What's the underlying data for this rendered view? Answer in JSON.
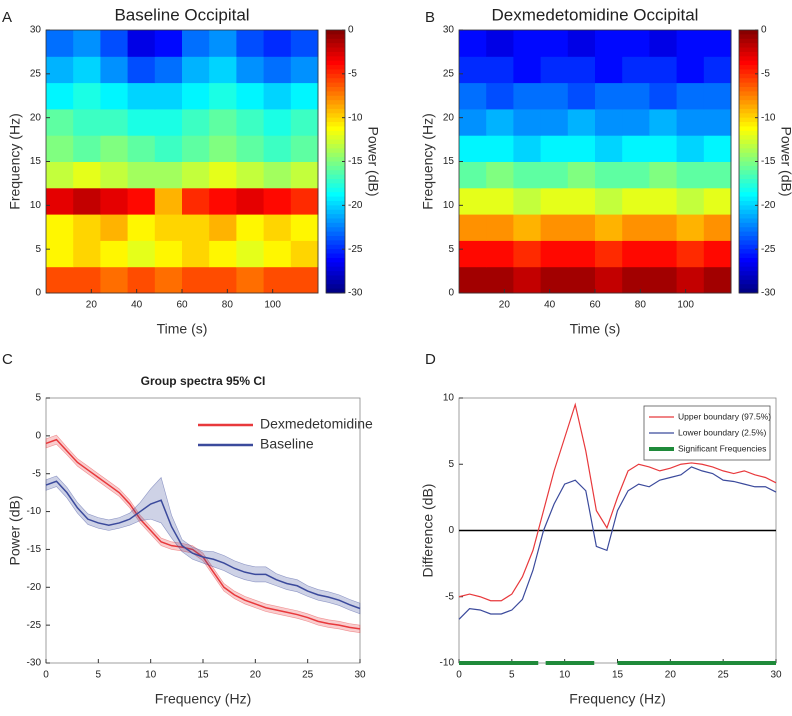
{
  "chart_data": [
    {
      "panel": "A",
      "type": "heatmap",
      "title": "Baseline Occipital",
      "xlabel": "Time (s)",
      "ylabel": "Frequency (Hz)",
      "x_edges": [
        0,
        12,
        24,
        36,
        48,
        60,
        72,
        84,
        96,
        108,
        120
      ],
      "y_edges": [
        0,
        3,
        6,
        9,
        12,
        15,
        18,
        21,
        24,
        27,
        30
      ],
      "z": [
        [
          -6,
          -6,
          -7,
          -6,
          -7,
          -6,
          -6,
          -7,
          -6,
          -6
        ],
        [
          -11,
          -10,
          -11,
          -12,
          -11,
          -10,
          -11,
          -12,
          -11,
          -10
        ],
        [
          -11,
          -10,
          -9,
          -11,
          -10,
          -10,
          -9,
          -11,
          -10,
          -11
        ],
        [
          -3,
          -2,
          -3,
          -4,
          -9,
          -5,
          -4,
          -3,
          -4,
          -5
        ],
        [
          -13,
          -12,
          -13,
          -14,
          -14,
          -13,
          -12,
          -13,
          -14,
          -13
        ],
        [
          -15,
          -16,
          -15,
          -16,
          -17,
          -16,
          -15,
          -16,
          -17,
          -16
        ],
        [
          -16,
          -17,
          -17,
          -18,
          -18,
          -17,
          -16,
          -17,
          -18,
          -17
        ],
        [
          -19,
          -18,
          -19,
          -20,
          -20,
          -19,
          -18,
          -19,
          -20,
          -19
        ],
        [
          -21,
          -20,
          -22,
          -24,
          -23,
          -21,
          -20,
          -22,
          -23,
          -22
        ],
        [
          -23,
          -22,
          -24,
          -27,
          -26,
          -23,
          -22,
          -24,
          -25,
          -24
        ]
      ],
      "xlim": [
        0,
        120
      ],
      "xticks": [
        20,
        40,
        60,
        80,
        100
      ],
      "ylim": [
        0,
        30
      ],
      "yticks": [
        0,
        5,
        10,
        15,
        20,
        25,
        30
      ],
      "colormap": "jet",
      "zlim": [
        -30,
        0
      ],
      "zticks": [
        0,
        -5,
        -10,
        -15,
        -20,
        -25,
        -30
      ],
      "zlabel": "Power (dB)"
    },
    {
      "panel": "B",
      "type": "heatmap",
      "title": "Dexmedetomidine Occipital",
      "xlabel": "Time (s)",
      "ylabel": "Frequency (Hz)",
      "x_edges": [
        0,
        12,
        24,
        36,
        48,
        60,
        72,
        84,
        96,
        108,
        120
      ],
      "y_edges": [
        0,
        3,
        6,
        9,
        12,
        15,
        18,
        21,
        24,
        27,
        30
      ],
      "z": [
        [
          -1,
          -1,
          -2,
          -1,
          -1,
          -2,
          -1,
          -1,
          -2,
          -1
        ],
        [
          -4,
          -4,
          -5,
          -4,
          -4,
          -5,
          -4,
          -4,
          -5,
          -4
        ],
        [
          -8,
          -8,
          -9,
          -8,
          -8,
          -9,
          -8,
          -8,
          -9,
          -8
        ],
        [
          -12,
          -12,
          -13,
          -12,
          -12,
          -13,
          -12,
          -12,
          -13,
          -12
        ],
        [
          -16,
          -15,
          -16,
          -16,
          -15,
          -16,
          -16,
          -15,
          -16,
          -16
        ],
        [
          -19,
          -19,
          -20,
          -19,
          -19,
          -20,
          -19,
          -19,
          -20,
          -19
        ],
        [
          -22,
          -21,
          -22,
          -22,
          -21,
          -22,
          -22,
          -21,
          -22,
          -22
        ],
        [
          -23,
          -24,
          -23,
          -23,
          -24,
          -23,
          -23,
          -24,
          -23,
          -23
        ],
        [
          -25,
          -25,
          -26,
          -25,
          -25,
          -26,
          -25,
          -25,
          -26,
          -25
        ],
        [
          -26,
          -27,
          -26,
          -26,
          -27,
          -26,
          -26,
          -27,
          -26,
          -26
        ]
      ],
      "xlim": [
        0,
        120
      ],
      "xticks": [
        20,
        40,
        60,
        80,
        100
      ],
      "ylim": [
        0,
        30
      ],
      "yticks": [
        0,
        5,
        10,
        15,
        20,
        25,
        30
      ],
      "colormap": "jet",
      "zlim": [
        -30,
        0
      ],
      "zticks": [
        0,
        -5,
        -10,
        -15,
        -20,
        -25,
        -30
      ],
      "zlabel": "Power (dB)"
    },
    {
      "panel": "C",
      "type": "line",
      "title": "Group spectra 95% CI",
      "xlabel": "Frequency (Hz)",
      "ylabel": "Power (dB)",
      "x": [
        0,
        1,
        2,
        3,
        4,
        5,
        6,
        7,
        8,
        9,
        10,
        11,
        12,
        13,
        14,
        15,
        16,
        17,
        18,
        19,
        20,
        21,
        22,
        23,
        24,
        25,
        26,
        27,
        28,
        29,
        30
      ],
      "series": [
        {
          "name": "Dexmedetomidine",
          "color": "#e8393c",
          "values": [
            -1,
            -0.5,
            -2,
            -3.5,
            -4.5,
            -5.5,
            -6.5,
            -7.5,
            -9,
            -11,
            -12.5,
            -14,
            -14.5,
            -14.7,
            -15,
            -16,
            -18,
            -20,
            -21,
            -21.7,
            -22.2,
            -22.7,
            -23,
            -23.3,
            -23.6,
            -24,
            -24.5,
            -24.8,
            -25,
            -25.3,
            -25.5
          ],
          "ci": [
            0.6,
            0.6,
            0.5,
            0.5,
            0.5,
            0.5,
            0.5,
            0.5,
            0.5,
            0.5,
            0.5,
            0.5,
            0.5,
            0.5,
            0.5,
            0.5,
            0.5,
            0.5,
            0.5,
            0.5,
            0.5,
            0.5,
            0.5,
            0.5,
            0.5,
            0.5,
            0.5,
            0.5,
            0.5,
            0.5,
            0.5
          ]
        },
        {
          "name": "Baseline",
          "color": "#3b4a9c",
          "values": [
            -6.5,
            -6,
            -7.5,
            -9.5,
            -11,
            -11.5,
            -11.8,
            -11.5,
            -11,
            -10,
            -9,
            -8.5,
            -12,
            -14.5,
            -15.5,
            -16,
            -16.3,
            -16.8,
            -17.5,
            -18,
            -18.3,
            -18.3,
            -19,
            -19.5,
            -19.8,
            -20.5,
            -21,
            -21.3,
            -21.7,
            -22.3,
            -22.8
          ],
          "ci": [
            0.7,
            0.7,
            0.7,
            0.7,
            0.7,
            0.7,
            0.7,
            0.7,
            0.8,
            1.2,
            2,
            3,
            1.5,
            0.8,
            0.8,
            0.8,
            1,
            1,
            1,
            1,
            1,
            1,
            0.8,
            0.8,
            0.8,
            0.7,
            0.7,
            0.7,
            0.7,
            0.7,
            0.7
          ]
        }
      ],
      "xlim": [
        0,
        30
      ],
      "xticks": [
        0,
        5,
        10,
        15,
        20,
        25,
        30
      ],
      "ylim": [
        -30,
        5
      ],
      "yticks": [
        -30,
        -25,
        -20,
        -15,
        -10,
        -5,
        0,
        5
      ],
      "legend": "upper right"
    },
    {
      "panel": "D",
      "type": "line",
      "xlabel": "Frequency (Hz)",
      "ylabel": "Difference (dB)",
      "x": [
        0,
        1,
        2,
        3,
        4,
        5,
        6,
        7,
        8,
        9,
        10,
        11,
        12,
        13,
        14,
        15,
        16,
        17,
        18,
        19,
        20,
        21,
        22,
        23,
        24,
        25,
        26,
        27,
        28,
        29,
        30
      ],
      "series": [
        {
          "name": "Upper boundary (97.5%)",
          "color": "#e8393c",
          "values": [
            -5,
            -4.8,
            -5,
            -5.3,
            -5.3,
            -4.8,
            -3.5,
            -1.5,
            1.5,
            4.5,
            7,
            9.5,
            6,
            1.5,
            0.2,
            2.5,
            4.5,
            5,
            4.8,
            4.5,
            4.7,
            5,
            5.1,
            5,
            4.8,
            4.5,
            4.3,
            4.5,
            4.2,
            4,
            3.6
          ]
        },
        {
          "name": "Lower boundary (2.5%)",
          "color": "#3b4a9c",
          "values": [
            -6.7,
            -5.9,
            -6,
            -6.3,
            -6.3,
            -6,
            -5.2,
            -3,
            0,
            2,
            3.5,
            3.8,
            3,
            -1.2,
            -1.5,
            1.5,
            3,
            3.5,
            3.3,
            3.8,
            4,
            4.2,
            4.8,
            4.5,
            4.3,
            3.8,
            3.7,
            3.5,
            3.3,
            3.3,
            2.9
          ]
        }
      ],
      "significant": {
        "name": "Significant Frequencies",
        "color": "#1f8a3a",
        "y": -10,
        "segments": [
          [
            0,
            7.5
          ],
          [
            8.2,
            12.8
          ],
          [
            15,
            30
          ]
        ]
      },
      "hline": 0,
      "xlim": [
        0,
        30
      ],
      "xticks": [
        0,
        5,
        10,
        15,
        20,
        25,
        30
      ],
      "ylim": [
        -10,
        10
      ],
      "yticks": [
        -10,
        -5,
        0,
        5,
        10
      ],
      "legend": "upper right",
      "legend_box": true
    }
  ]
}
